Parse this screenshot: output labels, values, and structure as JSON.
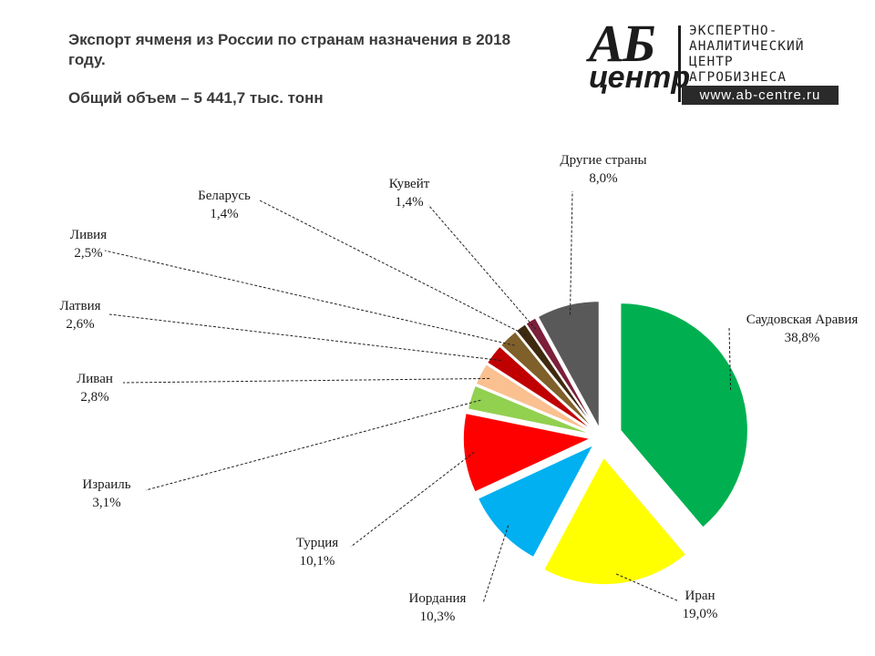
{
  "header": {
    "title": "Экспорт ячменя из России по странам назначения в 2018 году.",
    "subtitle": "Общий объем  – 5 441,7 тыс. тонн"
  },
  "logo": {
    "mark_top": "АБ",
    "mark_bottom": "центр",
    "lines": [
      "ЭКСПЕРТНО-",
      "АНАЛИТИЧЕСКИЙ",
      "ЦЕНТР",
      "АГРОБИЗНЕСА"
    ],
    "url": "www.ab-centre.ru"
  },
  "chart_data": {
    "type": "pie",
    "title": "Экспорт ячменя из России по странам назначения в 2018 году.",
    "slices": [
      {
        "label": "Саудовская Аравия",
        "value_label": "38,8%",
        "value": 38.8,
        "color": "#00b050"
      },
      {
        "label": "Иран",
        "value_label": "19,0%",
        "value": 19.0,
        "color": "#ffff00"
      },
      {
        "label": "Иордания",
        "value_label": "10,3%",
        "value": 10.3,
        "color": "#00b0f0"
      },
      {
        "label": "Турция",
        "value_label": "10,1%",
        "value": 10.1,
        "color": "#ff0000"
      },
      {
        "label": "Израиль",
        "value_label": "3,1%",
        "value": 3.1,
        "color": "#92d050"
      },
      {
        "label": "Ливан",
        "value_label": "2,8%",
        "value": 2.8,
        "color": "#fac090"
      },
      {
        "label": "Латвия",
        "value_label": "2,6%",
        "value": 2.6,
        "color": "#c00000"
      },
      {
        "label": "Ливия",
        "value_label": "2,5%",
        "value": 2.5,
        "color": "#7f5f2a"
      },
      {
        "label": "Беларусь",
        "value_label": "1,4%",
        "value": 1.4,
        "color": "#3f2a10"
      },
      {
        "label": "Кувейт",
        "value_label": "1,4%",
        "value": 1.4,
        "color": "#7b1f3a"
      },
      {
        "label": "Другие страны",
        "value_label": "8,0%",
        "value": 8.0,
        "color": "#595959"
      }
    ]
  }
}
